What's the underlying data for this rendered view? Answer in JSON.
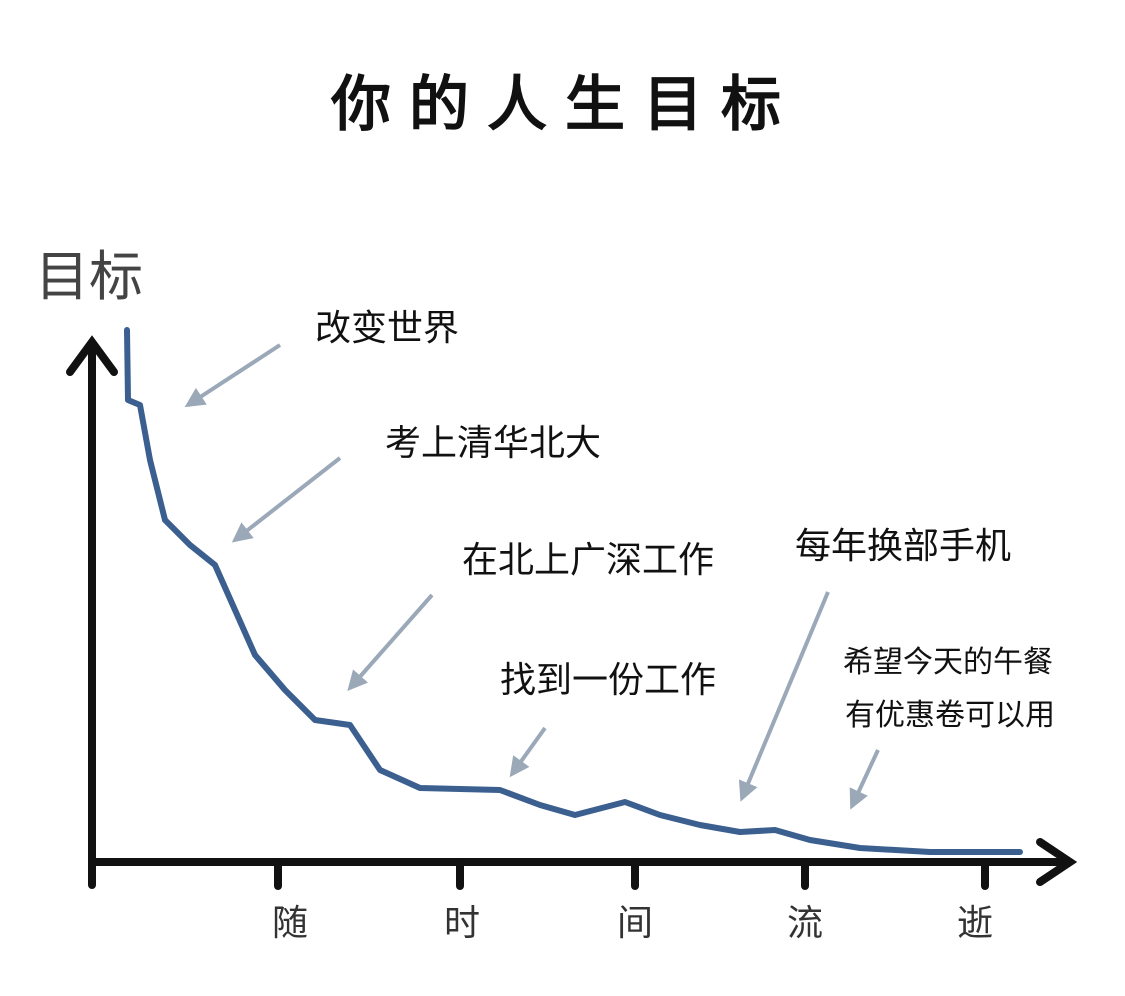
{
  "title": "你的人生目标",
  "y_axis_label": "目标",
  "x_axis_labels": [
    "随",
    "时",
    "间",
    "流",
    "逝"
  ],
  "annotations": [
    "改变世界",
    "考上清华北大",
    "在北上广深工作",
    "找到一份工作",
    "每年换部手机",
    "希望今天的午餐",
    "有优惠卷可以用"
  ]
}
